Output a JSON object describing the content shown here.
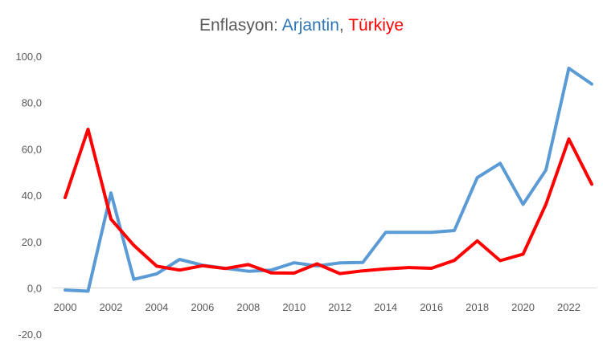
{
  "chart_data": {
    "type": "line",
    "title": {
      "prefix": "Enflasyon: ",
      "series1": "Arjantin",
      "separator": ", ",
      "series2": "Türkiye"
    },
    "x": [
      2000,
      2001,
      2002,
      2003,
      2004,
      2005,
      2006,
      2007,
      2008,
      2009,
      2010,
      2011,
      2012,
      2013,
      2014,
      2015,
      2016,
      2017,
      2018,
      2019,
      2020,
      2021,
      2022,
      2023
    ],
    "x_tick_labels": [
      "2000",
      "2002",
      "2004",
      "2006",
      "2008",
      "2010",
      "2012",
      "2014",
      "2016",
      "2018",
      "2020",
      "2022"
    ],
    "y_tick_labels": [
      "100,0",
      "80,0",
      "60,0",
      "40,0",
      "20,0",
      "0,0",
      "-20,0"
    ],
    "ylim": [
      -20,
      100
    ],
    "grid": false,
    "legend": "none",
    "series": [
      {
        "name": "Arjantin",
        "color": "#5B9BD5",
        "values": [
          -0.9,
          -1.4,
          41.0,
          3.7,
          6.1,
          12.3,
          9.8,
          8.5,
          7.2,
          7.7,
          10.9,
          9.5,
          10.8,
          11.0,
          24.0,
          24.0,
          24.0,
          24.8,
          47.6,
          53.8,
          36.1,
          50.9,
          94.8,
          88.0
        ]
      },
      {
        "name": "Türkiye",
        "color": "#FF0000",
        "values": [
          39.0,
          68.5,
          29.7,
          18.4,
          9.4,
          7.7,
          9.6,
          8.4,
          10.1,
          6.5,
          6.4,
          10.4,
          6.2,
          7.4,
          8.2,
          8.8,
          8.5,
          11.9,
          20.3,
          11.8,
          14.6,
          36.1,
          64.3,
          44.8
        ]
      }
    ]
  }
}
